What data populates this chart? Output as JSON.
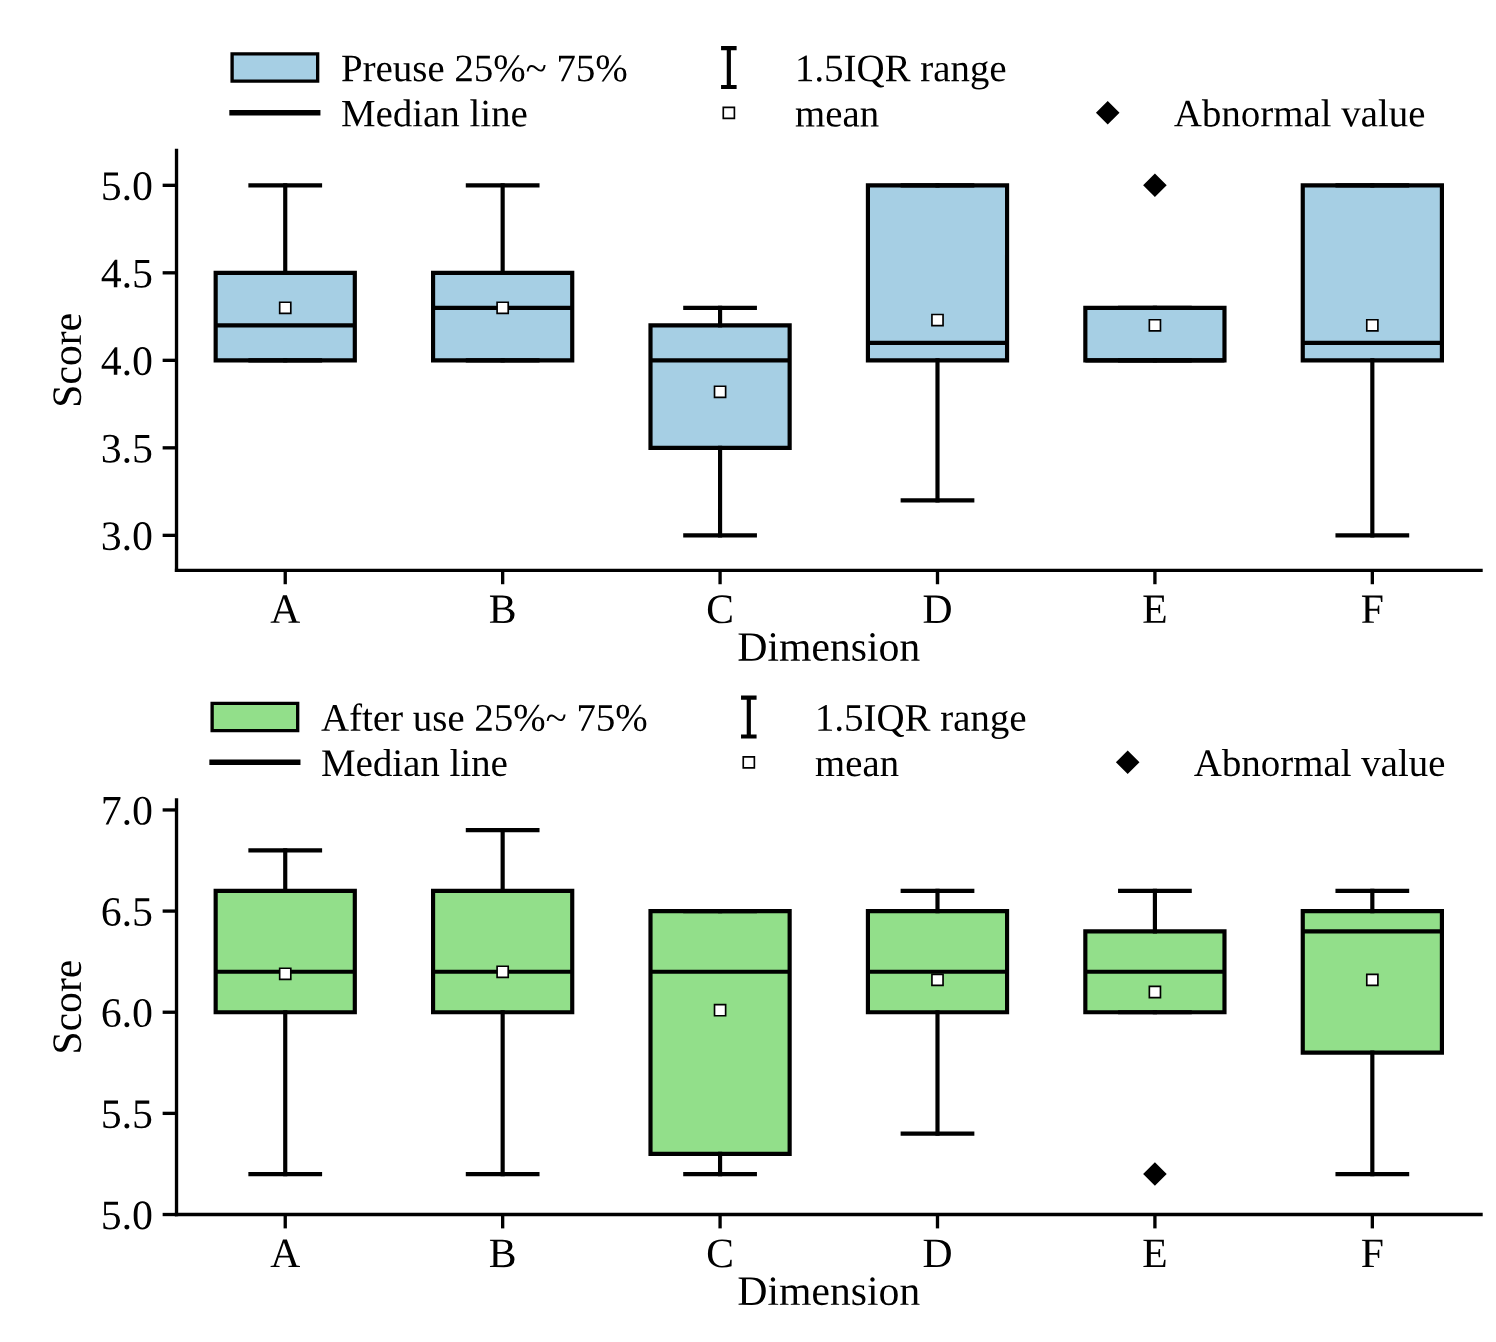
{
  "chart_data": [
    {
      "type": "box",
      "xlabel": "Dimension",
      "ylabel": "Score",
      "categories": [
        "A",
        "B",
        "C",
        "D",
        "E",
        "F"
      ],
      "ylim": [
        2.8,
        5.2
      ],
      "yticks": [
        {
          "value": 3,
          "label": "3.0"
        },
        3.5,
        {
          "value": 4,
          "label": "4.0"
        },
        4.5,
        {
          "value": 5,
          "label": "5.0"
        }
      ],
      "legend": "top",
      "grid": false,
      "series": [
        {
          "name": "Preuse 25%~ 75%",
          "color": "#a6cfe4",
          "boxes": [
            {
              "low": 4.0,
              "q1": 4.0,
              "median": 4.2,
              "q3": 4.5,
              "high": 5.0,
              "mean": 4.3
            },
            {
              "low": 4.0,
              "q1": 4.0,
              "median": 4.3,
              "q3": 4.5,
              "high": 5.0,
              "mean": 4.3
            },
            {
              "low": 3.0,
              "q1": 3.5,
              "median": 4.0,
              "q3": 4.2,
              "high": 4.3,
              "mean": 3.82
            },
            {
              "low": 3.2,
              "q1": 4.0,
              "median": 4.1,
              "q3": 5.0,
              "high": 5.0,
              "mean": 4.23
            },
            {
              "low": 4.0,
              "q1": 4.0,
              "median": 4.0,
              "q3": 4.3,
              "high": 4.3,
              "mean": 4.2,
              "outliers": [
                5.0
              ]
            },
            {
              "low": 3.0,
              "q1": 4.0,
              "median": 4.1,
              "q3": 5.0,
              "high": 5.0,
              "mean": 4.2
            }
          ]
        }
      ],
      "annotations": [
        "1.5IQR range",
        "Median line",
        "mean",
        "Abnormal value"
      ]
    },
    {
      "type": "box",
      "xlabel": "Dimension",
      "ylabel": "Score",
      "categories": [
        "A",
        "B",
        "C",
        "D",
        "E",
        "F"
      ],
      "ylim": [
        5.0,
        7.05
      ],
      "yticks": [
        {
          "value": 5,
          "label": "5.0"
        },
        5.5,
        {
          "value": 6,
          "label": "6.0"
        },
        6.5,
        {
          "value": 7,
          "label": "7.0"
        }
      ],
      "legend": "top",
      "grid": false,
      "series": [
        {
          "name": "After use 25%~ 75%",
          "color": "#92df8a",
          "boxes": [
            {
              "low": 5.2,
              "q1": 6.0,
              "median": 6.2,
              "q3": 6.6,
              "high": 6.8,
              "mean": 6.19
            },
            {
              "low": 5.2,
              "q1": 6.0,
              "median": 6.2,
              "q3": 6.6,
              "high": 6.9,
              "mean": 6.2
            },
            {
              "low": 5.2,
              "q1": 5.3,
              "median": 6.2,
              "q3": 6.5,
              "high": 6.5,
              "mean": 6.01
            },
            {
              "low": 5.4,
              "q1": 6.0,
              "median": 6.2,
              "q3": 6.5,
              "high": 6.6,
              "mean": 6.16
            },
            {
              "low": 6.0,
              "q1": 6.0,
              "median": 6.2,
              "q3": 6.4,
              "high": 6.6,
              "mean": 6.1,
              "outliers": [
                5.2
              ]
            },
            {
              "low": 5.2,
              "q1": 5.8,
              "median": 6.4,
              "q3": 6.5,
              "high": 6.6,
              "mean": 6.16
            }
          ]
        }
      ],
      "annotations": [
        "1.5IQR range",
        "Median line",
        "mean",
        "Abnormal value"
      ]
    }
  ]
}
